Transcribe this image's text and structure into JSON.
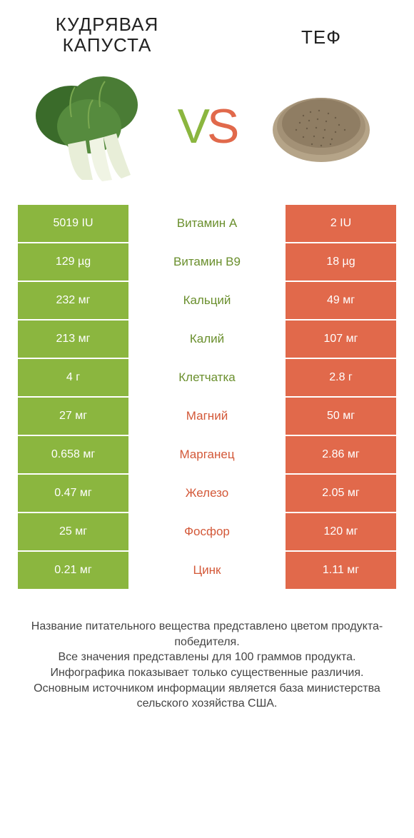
{
  "colors": {
    "green": "#8bb63f",
    "orange": "#e1694b",
    "green_text": "#6a8f2d",
    "orange_text": "#d35838",
    "background": "#ffffff"
  },
  "header": {
    "left_title": "КУДРЯВАЯ КАПУСТА",
    "right_title": "ТЕФ",
    "vs_v": "V",
    "vs_s": "S"
  },
  "rows": [
    {
      "left": "5019 IU",
      "label": "Витамин A",
      "right": "2 IU",
      "winner": "left"
    },
    {
      "left": "129 µg",
      "label": "Витамин B9",
      "right": "18 µg",
      "winner": "left"
    },
    {
      "left": "232 мг",
      "label": "Кальций",
      "right": "49 мг",
      "winner": "left"
    },
    {
      "left": "213 мг",
      "label": "Калий",
      "right": "107 мг",
      "winner": "left"
    },
    {
      "left": "4 г",
      "label": "Клетчатка",
      "right": "2.8 г",
      "winner": "left"
    },
    {
      "left": "27 мг",
      "label": "Магний",
      "right": "50 мг",
      "winner": "right"
    },
    {
      "left": "0.658 мг",
      "label": "Марганец",
      "right": "2.86 мг",
      "winner": "right"
    },
    {
      "left": "0.47 мг",
      "label": "Железо",
      "right": "2.05 мг",
      "winner": "right"
    },
    {
      "left": "25 мг",
      "label": "Фосфор",
      "right": "120 мг",
      "winner": "right"
    },
    {
      "left": "0.21 мг",
      "label": "Цинк",
      "right": "1.11 мг",
      "winner": "right"
    }
  ],
  "footnotes": {
    "l1": "Название питательного вещества представлено цветом продукта-победителя.",
    "l2": "Все значения представлены для 100 граммов продукта.",
    "l3": "Инфографика показывает только существенные различия.",
    "l4": "Основным источником информации является база министерства сельского хозяйства США."
  }
}
